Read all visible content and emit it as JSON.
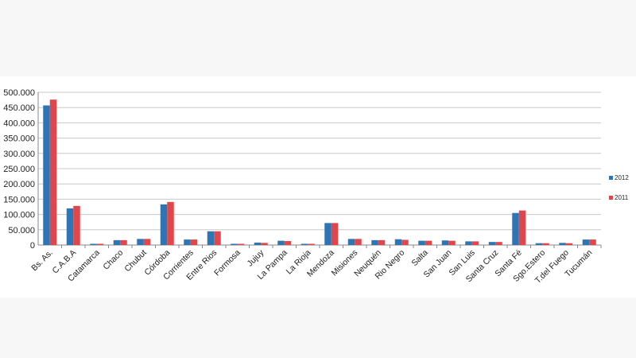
{
  "chart_data": {
    "type": "bar",
    "title": "",
    "xlabel": "",
    "ylabel": "",
    "ylim": [
      0,
      500000
    ],
    "y_ticks": [
      "0",
      "50.000",
      "100.000",
      "150.000",
      "200.000",
      "250.000",
      "300.000",
      "350.000",
      "400.000",
      "450.000",
      "500.000"
    ],
    "grid": true,
    "legend_position": "right",
    "categories": [
      "Bs. As.",
      "C.A.B.A",
      "Catamarca",
      "Chaco",
      "Chubut",
      "Córdoba",
      "Corrientes",
      "Entre Rios",
      "Formosa",
      "Jujuy",
      "La Pampa",
      "La Rioja",
      "Mendoza",
      "Misiones",
      "Neuquén",
      "Rio Negro",
      "Salta",
      "San Juan",
      "San Luis",
      "Santa Cruz",
      "Santa Fé",
      "Sgo.Estero",
      "T.del Fuego",
      "Tucumán"
    ],
    "series": [
      {
        "name": "2012",
        "color": "#2e75b6",
        "values": [
          457000,
          120000,
          4000,
          16000,
          20000,
          133000,
          18000,
          45000,
          4000,
          8000,
          14000,
          4000,
          72000,
          20000,
          16000,
          19000,
          14000,
          15000,
          12000,
          10000,
          105000,
          6000,
          7000,
          18000
        ]
      },
      {
        "name": "2011",
        "color": "#e0474c",
        "values": [
          476000,
          128000,
          4000,
          16000,
          20000,
          141000,
          18000,
          45000,
          4000,
          7000,
          13000,
          4000,
          72000,
          20000,
          16000,
          17000,
          14000,
          14000,
          12000,
          10000,
          113000,
          6000,
          6000,
          18000
        ]
      }
    ]
  }
}
